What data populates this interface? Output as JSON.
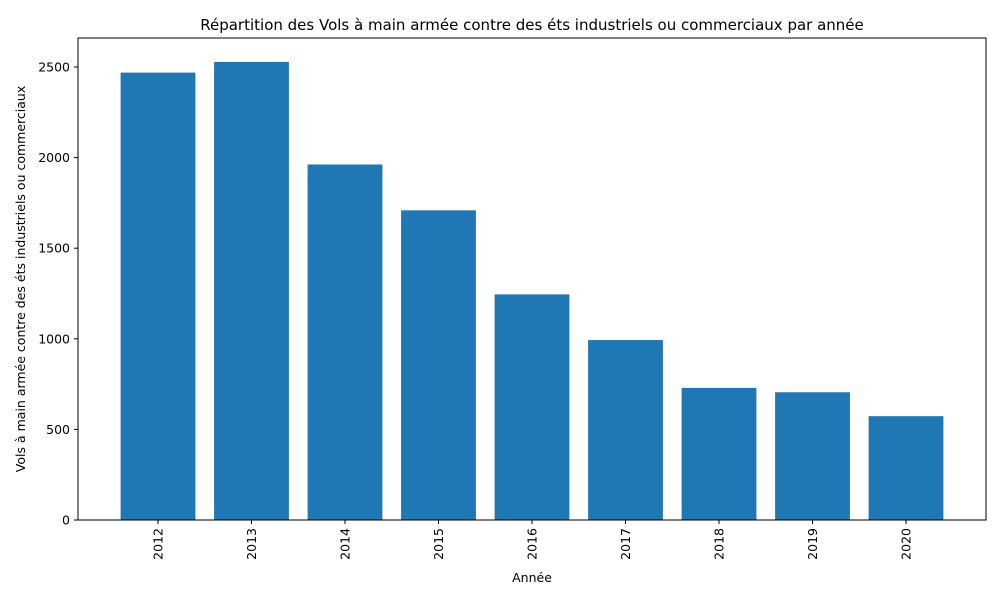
{
  "chart_data": {
    "type": "bar",
    "title": "Répartition des Vols à main armée contre des éts industriels ou commerciaux par année",
    "xlabel": "Année",
    "ylabel": "Vols à main armée contre des éts industriels ou commerciaux",
    "categories": [
      "2012",
      "2013",
      "2014",
      "2015",
      "2016",
      "2017",
      "2018",
      "2019",
      "2020"
    ],
    "values": [
      2469,
      2528,
      1962,
      1709,
      1245,
      993,
      729,
      705,
      573
    ],
    "ylim": [
      0,
      2660
    ],
    "yticks": [
      0,
      500,
      1000,
      1500,
      2000,
      2500
    ],
    "bar_color": "#1f77b4",
    "grid": false,
    "xtick_rotation": "vertical"
  }
}
